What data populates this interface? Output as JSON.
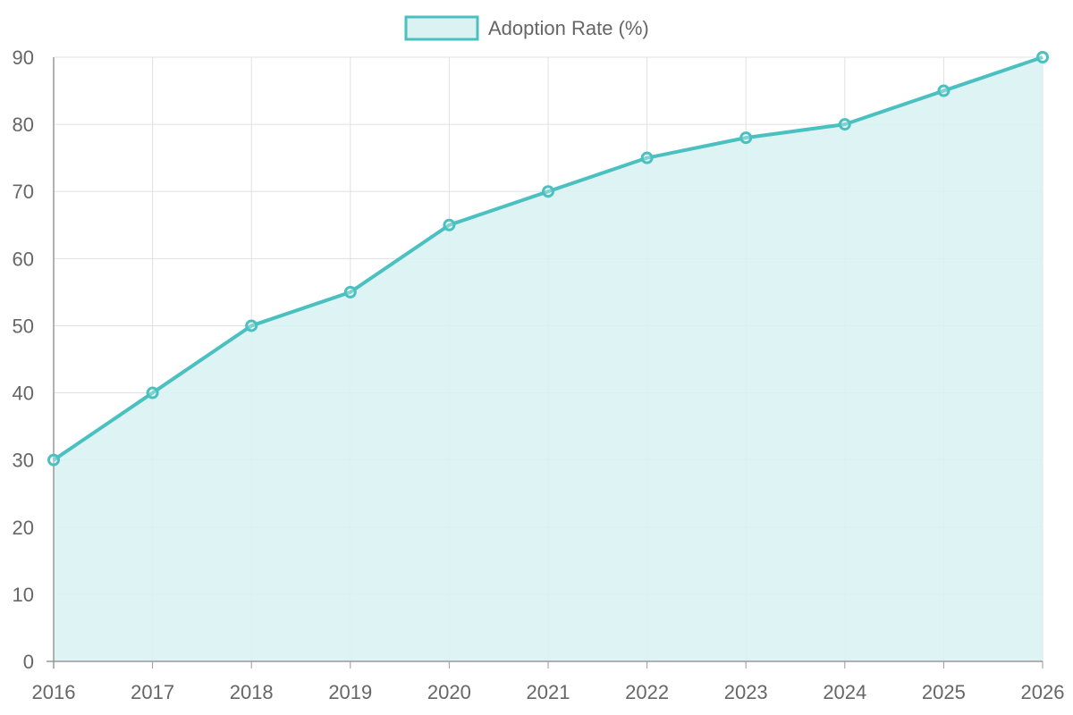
{
  "chart_data": {
    "type": "area",
    "x": [
      "2016",
      "2017",
      "2018",
      "2019",
      "2020",
      "2021",
      "2022",
      "2023",
      "2024",
      "2025",
      "2026"
    ],
    "series": [
      {
        "name": "Adoption Rate (%)",
        "values": [
          30,
          40,
          50,
          55,
          65,
          70,
          75,
          78,
          80,
          85,
          90
        ]
      }
    ],
    "title": "",
    "xlabel": "",
    "ylabel": "",
    "ylim": [
      0,
      90
    ],
    "yticks": [
      "0",
      "10",
      "20",
      "30",
      "40",
      "50",
      "60",
      "70",
      "80",
      "90"
    ],
    "grid": true,
    "legend_position": "top-center"
  },
  "colors": {
    "line": "#4bc0c0",
    "fill": "#daf2f2",
    "grid": "#e0e0e0",
    "axis": "#999999",
    "text": "#666666"
  }
}
